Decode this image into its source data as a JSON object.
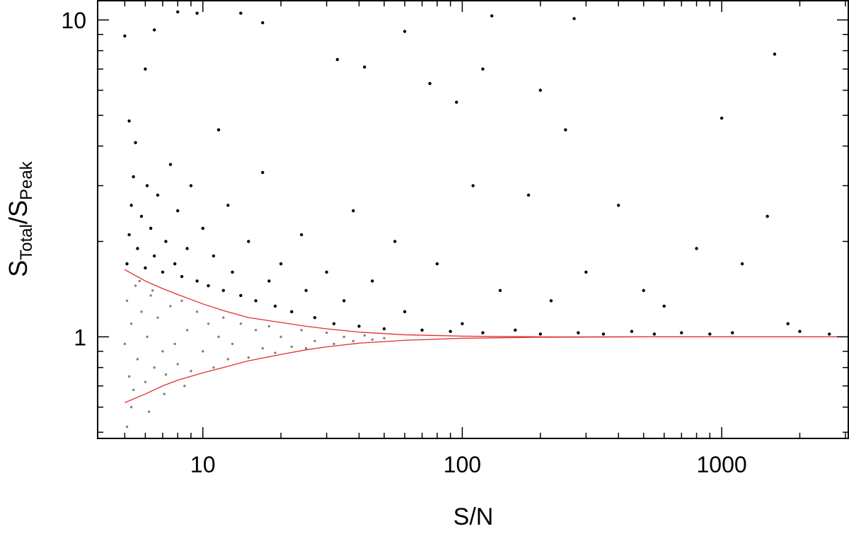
{
  "chart_data": {
    "type": "scatter",
    "xlabel": "S/N",
    "ylabel": [
      {
        "text": "S"
      },
      {
        "text": "Total",
        "sub": true
      },
      {
        "text": "/S"
      },
      {
        "text": "Peak",
        "sub": true
      }
    ],
    "xscale": "log",
    "yscale": "log",
    "xlim": [
      3.93,
      3076
    ],
    "ylim": [
      0.478,
      11.5
    ],
    "xticks": [
      10,
      100,
      1000
    ],
    "yticks": [
      1,
      10
    ],
    "xminorticks": [
      5,
      6,
      7,
      8,
      9,
      20,
      30,
      40,
      50,
      60,
      70,
      80,
      90,
      200,
      300,
      400,
      500,
      600,
      700,
      800,
      900,
      2000,
      3000
    ],
    "yminorticks": [
      0.5,
      0.6,
      0.7,
      0.8,
      0.9,
      2,
      3,
      4,
      5,
      6,
      7,
      8,
      9
    ],
    "series": [
      {
        "color": "#000000",
        "size": 2.2,
        "x": [
          5.1,
          5.2,
          5.3,
          5.4,
          5.5,
          5.2,
          5.6,
          5.8,
          6.0,
          6.1,
          6.3,
          6.5,
          6.7,
          7.0,
          7.2,
          7.5,
          7.8,
          8.0,
          8.3,
          8.7,
          9.0,
          9.5,
          10,
          10.5,
          11,
          11.5,
          12,
          12.5,
          13,
          14,
          15,
          16,
          17,
          18,
          19,
          20,
          22,
          24,
          25,
          27,
          30,
          32,
          35,
          38,
          40,
          45,
          50,
          55,
          60,
          70,
          80,
          90,
          100,
          110,
          120,
          140,
          160,
          180,
          200,
          220,
          250,
          280,
          300,
          350,
          400,
          450,
          500,
          550,
          600,
          700,
          800,
          900,
          1000,
          1100,
          1200,
          1500,
          1600,
          1800,
          2000,
          2600,
          5.0,
          6.0,
          6.5,
          8.0,
          9.5,
          14,
          17,
          42,
          60,
          130,
          270,
          200,
          33,
          75,
          120,
          95
        ],
        "values": [
          1.7,
          2.1,
          2.6,
          3.2,
          4.1,
          4.8,
          1.9,
          2.4,
          1.65,
          3.0,
          2.2,
          1.8,
          2.8,
          1.6,
          2.0,
          3.5,
          1.7,
          2.5,
          1.55,
          1.9,
          3.0,
          1.5,
          2.2,
          1.45,
          1.8,
          4.5,
          1.4,
          2.6,
          1.6,
          1.35,
          2.0,
          1.3,
          3.3,
          1.5,
          1.25,
          1.7,
          1.2,
          2.1,
          1.4,
          1.15,
          1.6,
          1.1,
          1.3,
          2.5,
          1.08,
          1.5,
          1.06,
          2.0,
          1.2,
          1.05,
          1.7,
          1.04,
          1.1,
          3.0,
          1.03,
          1.4,
          1.05,
          2.8,
          1.02,
          1.3,
          4.5,
          1.03,
          1.6,
          1.02,
          2.6,
          1.04,
          1.4,
          1.02,
          1.25,
          1.03,
          1.9,
          1.02,
          4.9,
          1.03,
          1.7,
          2.4,
          7.8,
          1.1,
          1.04,
          1.02,
          8.9,
          7.0,
          9.3,
          10.6,
          10.5,
          10.5,
          9.8,
          7.1,
          9.2,
          10.3,
          10.1,
          6.0,
          7.5,
          6.3,
          7.0,
          5.5
        ]
      },
      {
        "color": "#808080",
        "size": 1.7,
        "x": [
          5.0,
          5.1,
          5.2,
          5.3,
          5.4,
          5.5,
          5.6,
          5.8,
          6.0,
          6.1,
          6.3,
          6.5,
          6.7,
          7.0,
          7.2,
          7.5,
          7.8,
          8.0,
          8.3,
          8.7,
          9.0,
          9.5,
          10,
          10.5,
          11,
          11.5,
          12,
          12.5,
          13,
          14,
          15,
          16,
          17,
          18,
          19,
          20,
          22,
          24,
          25,
          27,
          30,
          32,
          35,
          38,
          42,
          45,
          50,
          5.1,
          5.3,
          6.2,
          7.1,
          8.5,
          5.7,
          6.4
        ],
        "values": [
          0.95,
          1.3,
          0.75,
          1.1,
          0.68,
          1.45,
          0.85,
          1.2,
          0.72,
          1.0,
          1.35,
          0.8,
          1.15,
          0.9,
          0.76,
          1.25,
          0.95,
          0.82,
          1.3,
          1.05,
          0.78,
          1.2,
          0.9,
          1.1,
          0.8,
          1.0,
          1.15,
          0.85,
          0.95,
          1.1,
          0.86,
          1.05,
          0.92,
          1.08,
          0.89,
          1.0,
          0.93,
          1.05,
          0.92,
          0.97,
          1.03,
          0.95,
          1.0,
          0.97,
          1.01,
          0.98,
          0.99,
          0.52,
          0.6,
          0.58,
          0.66,
          0.7,
          1.5,
          1.4
        ]
      }
    ],
    "lines": [
      {
        "color": "#e03030",
        "x": [
          5,
          6,
          7,
          8,
          10,
          12,
          15,
          20,
          25,
          30,
          40,
          60,
          100,
          200,
          500,
          1000,
          3076
        ],
        "values": [
          1.63,
          1.5,
          1.42,
          1.36,
          1.27,
          1.21,
          1.15,
          1.11,
          1.08,
          1.06,
          1.035,
          1.015,
          1.005,
          1.0,
          1.0,
          1.0,
          1.0
        ]
      },
      {
        "color": "#e03030",
        "x": [
          5,
          6,
          7,
          8,
          10,
          12,
          15,
          20,
          25,
          30,
          40,
          60,
          100,
          200,
          500,
          1000,
          3076
        ],
        "values": [
          0.62,
          0.66,
          0.7,
          0.73,
          0.77,
          0.8,
          0.84,
          0.88,
          0.91,
          0.93,
          0.955,
          0.975,
          0.99,
          0.997,
          1.0,
          1.0,
          1.0
        ]
      }
    ]
  }
}
